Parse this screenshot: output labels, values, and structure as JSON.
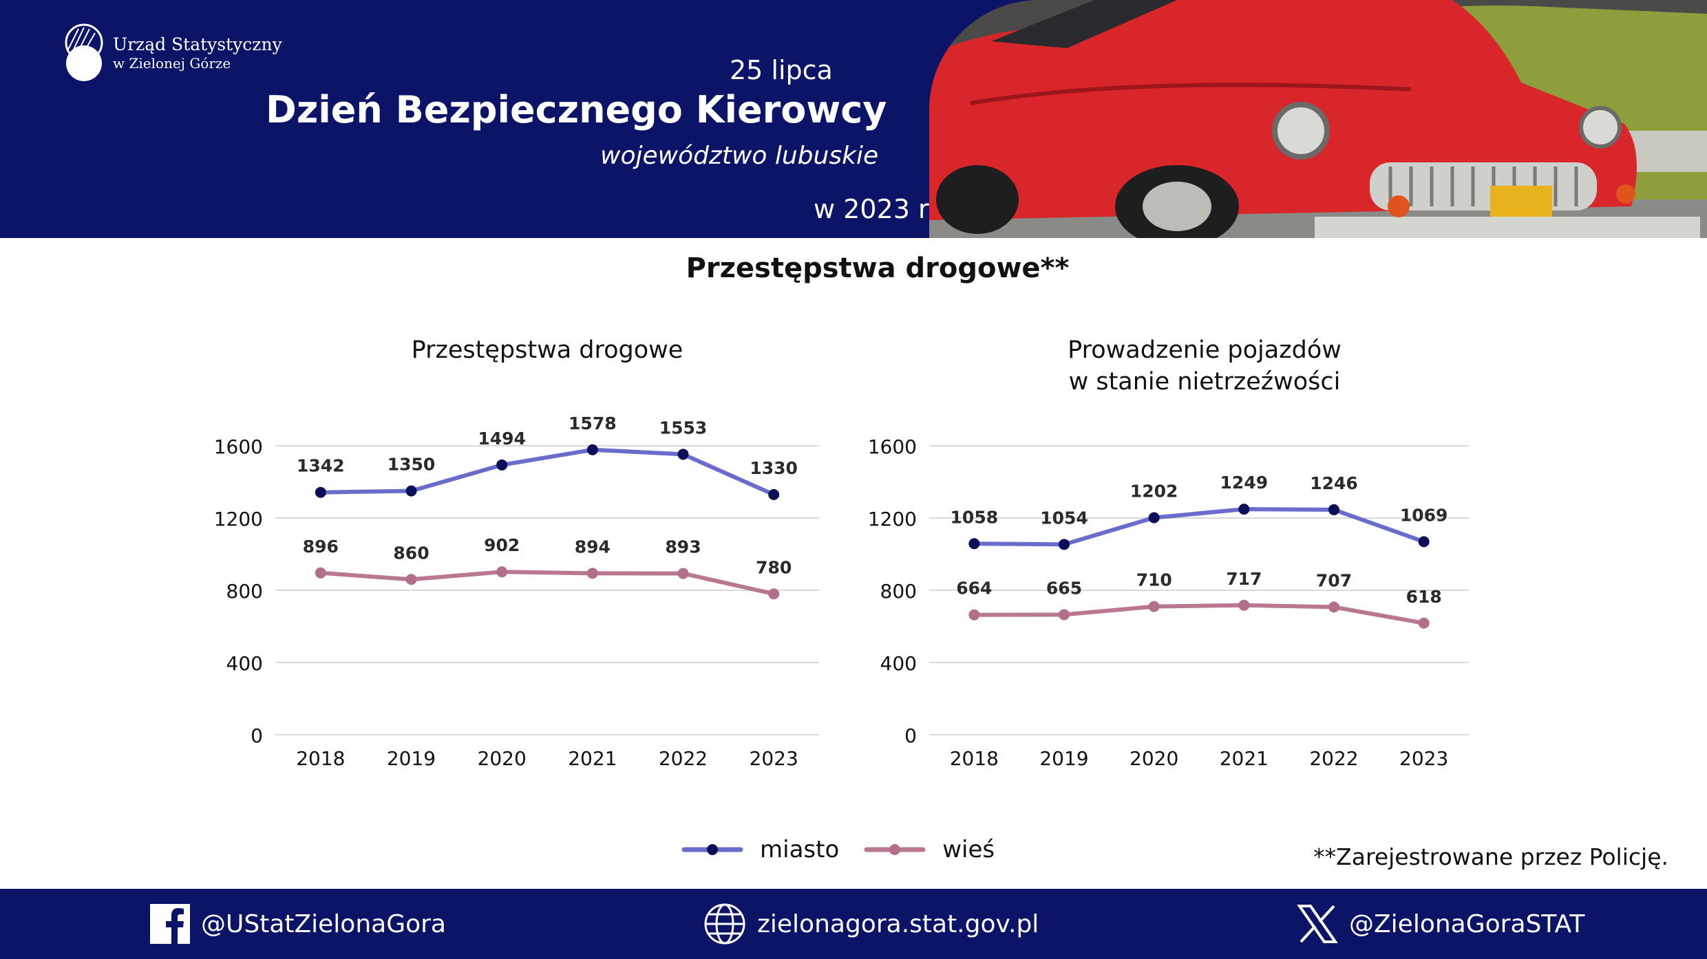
{
  "header": {
    "logo_line1": "Urząd Statystyczny",
    "logo_line2": "w Zielonej Górze",
    "date": "25 lipca",
    "title": "Dzień Bezpiecznego Kierowcy",
    "region": "województwo lubuskie",
    "year": "w 2023 r."
  },
  "section_title": "Przestępstwa drogowe**",
  "legend": {
    "series1": "miasto",
    "series2": "wieś"
  },
  "colors": {
    "series1": "#6a6ccc",
    "series1_marker": "#0b0f5a",
    "series2": "#b97790",
    "series2_marker": "#b26f8a",
    "header_bg": "#0b1466"
  },
  "footnote": "**Zarejestrowane przez Policję.",
  "footer": {
    "facebook": "@UStatZielonaGora",
    "website": "zielonagora.stat.gov.pl",
    "x": "@ZielonaGoraSTAT"
  },
  "chart_data": [
    {
      "type": "line",
      "title": "Przestępstwa drogowe",
      "categories": [
        "2018",
        "2019",
        "2020",
        "2021",
        "2022",
        "2023"
      ],
      "series": [
        {
          "name": "miasto",
          "values": [
            1342,
            1350,
            1494,
            1578,
            1553,
            1330
          ]
        },
        {
          "name": "wieś",
          "values": [
            896,
            860,
            902,
            894,
            893,
            780
          ]
        }
      ],
      "yticks": [
        "0",
        "400",
        "800",
        "1200",
        "1600"
      ],
      "ylim": [
        0,
        1600
      ],
      "grid": true
    },
    {
      "type": "line",
      "title_line1": "Prowadzenie pojazdów",
      "title_line2": "w stanie nietrzeźwości",
      "categories": [
        "2018",
        "2019",
        "2020",
        "2021",
        "2022",
        "2023"
      ],
      "series": [
        {
          "name": "miasto",
          "values": [
            1058,
            1054,
            1202,
            1249,
            1246,
            1069
          ]
        },
        {
          "name": "wieś",
          "values": [
            664,
            665,
            710,
            717,
            707,
            618
          ]
        }
      ],
      "yticks": [
        "0",
        "400",
        "800",
        "1200",
        "1600"
      ],
      "ylim": [
        0,
        1600
      ],
      "grid": true
    }
  ]
}
